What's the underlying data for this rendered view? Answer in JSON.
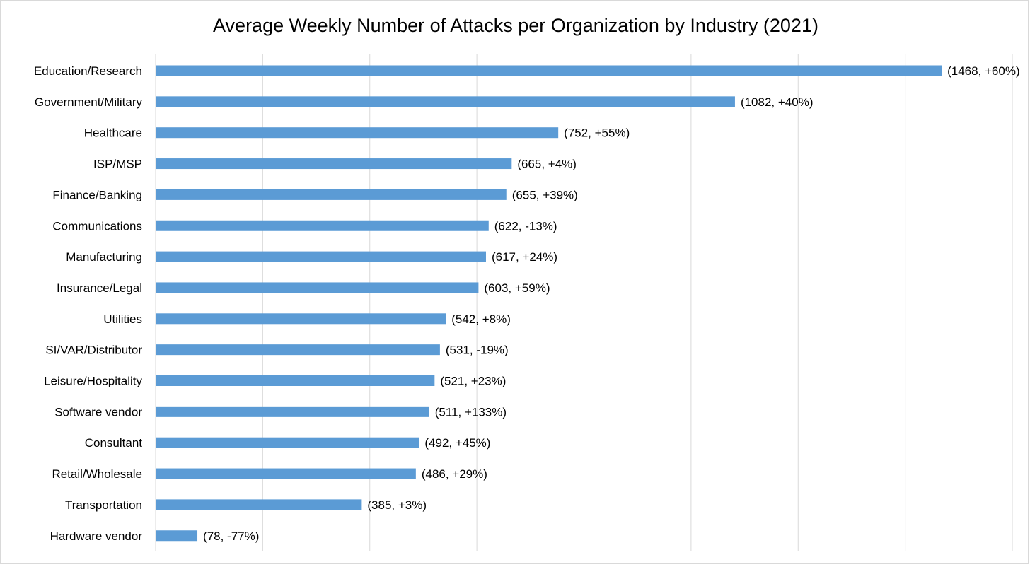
{
  "chart_data": {
    "type": "bar",
    "orientation": "horizontal",
    "title": "Average Weekly Number of Attacks per Organization by Industry (2021)",
    "xlabel": "",
    "ylabel": "",
    "xlim": [
      0,
      1600
    ],
    "grid": true,
    "legend": "none",
    "bar_color": "#5b9bd5",
    "gridline_color": "#d9d9d9",
    "categories": [
      "Education/Research",
      "Government/Military",
      "Healthcare",
      "ISP/MSP",
      "Finance/Banking",
      "Communications",
      "Manufacturing",
      "Insurance/Legal",
      "Utilities",
      "SI/VAR/Distributor",
      "Leisure/Hospitality",
      "Software vendor",
      "Consultant",
      "Retail/Wholesale",
      "Transportation",
      "Hardware vendor"
    ],
    "values": [
      1468,
      1082,
      752,
      665,
      655,
      622,
      617,
      603,
      542,
      531,
      521,
      511,
      492,
      486,
      385,
      78
    ],
    "data_labels": [
      "(1468, +60%)",
      "(1082, +40%)",
      "(752, +55%)",
      "(665, +4%)",
      "(655, +39%)",
      "(622, -13%)",
      "(617, +24%)",
      "(603, +59%)",
      "(542, +8%)",
      "(531, -19%)",
      "(521, +23%)",
      "(511, +133%)",
      "(492, +45%)",
      "(486, +29%)",
      "(385, +3%)",
      "(78, -77%)"
    ]
  }
}
